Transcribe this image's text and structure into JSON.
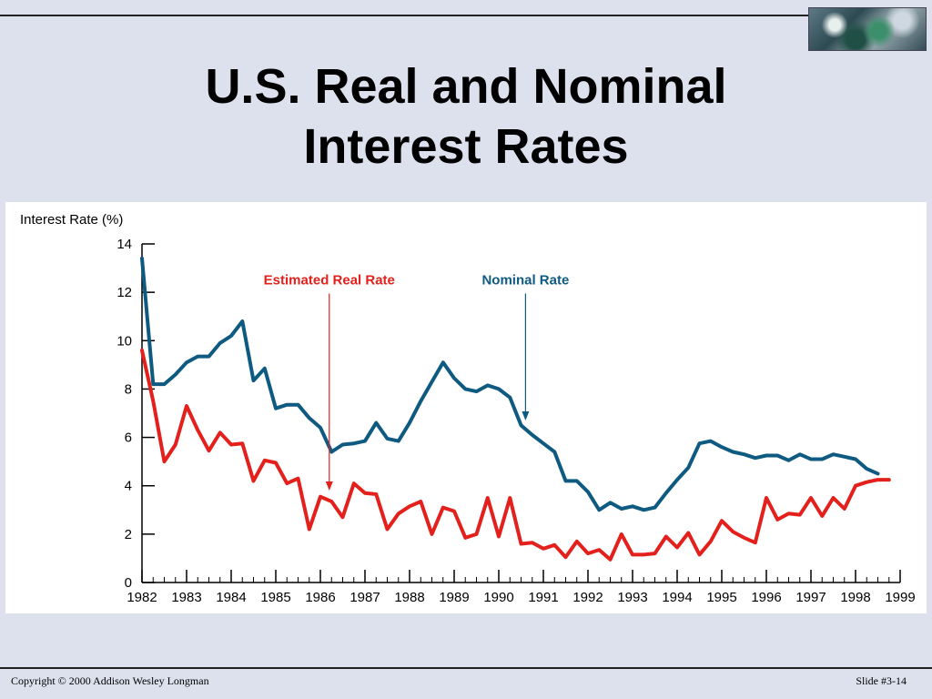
{
  "slide": {
    "title_line1": "U.S. Real and Nominal",
    "title_line2": "Interest Rates",
    "copyright": "Copyright © 2000 Addison Wesley Longman",
    "slide_number": "Slide #3-14"
  },
  "colors": {
    "nominal": "#0e5a80",
    "real": "#e3201b",
    "axis": "#000000"
  },
  "chart_data": {
    "type": "line",
    "title": "",
    "ylabel": "Interest Rate (%)",
    "xlabel": "",
    "xlim": [
      1982,
      1999
    ],
    "ylim": [
      0,
      14
    ],
    "yticks": [
      0,
      2,
      4,
      6,
      8,
      10,
      12,
      14
    ],
    "xticks": [
      1982,
      1983,
      1984,
      1985,
      1986,
      1987,
      1988,
      1989,
      1990,
      1991,
      1992,
      1993,
      1994,
      1995,
      1996,
      1997,
      1998,
      1999
    ],
    "grid": false,
    "legend": "inline annotations with arrows",
    "series": [
      {
        "name": "Nominal Rate",
        "color": "#0e5a80",
        "annotation": {
          "x": 1990.6,
          "y": 12.1,
          "arrow_to_y": 6.7
        },
        "points": [
          [
            1982.0,
            13.4
          ],
          [
            1982.25,
            8.2
          ],
          [
            1982.5,
            8.2
          ],
          [
            1982.75,
            8.6
          ],
          [
            1983.0,
            9.1
          ],
          [
            1983.25,
            9.35
          ],
          [
            1983.5,
            9.35
          ],
          [
            1983.75,
            9.9
          ],
          [
            1984.0,
            10.2
          ],
          [
            1984.25,
            10.8
          ],
          [
            1984.5,
            8.35
          ],
          [
            1984.75,
            8.85
          ],
          [
            1985.0,
            7.2
          ],
          [
            1985.25,
            7.35
          ],
          [
            1985.5,
            7.35
          ],
          [
            1985.75,
            6.8
          ],
          [
            1986.0,
            6.4
          ],
          [
            1986.25,
            5.4
          ],
          [
            1986.5,
            5.7
          ],
          [
            1986.75,
            5.75
          ],
          [
            1987.0,
            5.85
          ],
          [
            1987.25,
            6.6
          ],
          [
            1987.5,
            5.95
          ],
          [
            1987.75,
            5.85
          ],
          [
            1988.0,
            6.6
          ],
          [
            1988.25,
            7.5
          ],
          [
            1988.5,
            8.3
          ],
          [
            1988.75,
            9.1
          ],
          [
            1989.0,
            8.45
          ],
          [
            1989.25,
            8.0
          ],
          [
            1989.5,
            7.9
          ],
          [
            1989.75,
            8.15
          ],
          [
            1990.0,
            8.0
          ],
          [
            1990.25,
            7.65
          ],
          [
            1990.5,
            6.5
          ],
          [
            1990.75,
            6.1
          ],
          [
            1991.0,
            5.75
          ],
          [
            1991.25,
            5.4
          ],
          [
            1991.5,
            4.2
          ],
          [
            1991.75,
            4.2
          ],
          [
            1992.0,
            3.75
          ],
          [
            1992.25,
            3.0
          ],
          [
            1992.5,
            3.3
          ],
          [
            1992.75,
            3.05
          ],
          [
            1993.0,
            3.15
          ],
          [
            1993.25,
            3.0
          ],
          [
            1993.5,
            3.1
          ],
          [
            1993.75,
            3.7
          ],
          [
            1994.0,
            4.25
          ],
          [
            1994.25,
            4.75
          ],
          [
            1994.5,
            5.75
          ],
          [
            1994.75,
            5.85
          ],
          [
            1995.0,
            5.6
          ],
          [
            1995.25,
            5.4
          ],
          [
            1995.5,
            5.3
          ],
          [
            1995.75,
            5.15
          ],
          [
            1996.0,
            5.25
          ],
          [
            1996.25,
            5.25
          ],
          [
            1996.5,
            5.05
          ],
          [
            1996.75,
            5.3
          ],
          [
            1997.0,
            5.1
          ],
          [
            1997.25,
            5.1
          ],
          [
            1997.5,
            5.3
          ],
          [
            1997.75,
            5.2
          ],
          [
            1998.0,
            5.1
          ],
          [
            1998.25,
            4.7
          ],
          [
            1998.5,
            4.5
          ]
        ]
      },
      {
        "name": "Estimated Real Rate",
        "color": "#e3201b",
        "annotation": {
          "x": 1986.2,
          "y": 12.1,
          "arrow_to_y": 3.8
        },
        "points": [
          [
            1982.0,
            9.6
          ],
          [
            1982.25,
            7.5
          ],
          [
            1982.5,
            5.0
          ],
          [
            1982.75,
            5.7
          ],
          [
            1983.0,
            7.3
          ],
          [
            1983.25,
            6.3
          ],
          [
            1983.5,
            5.45
          ],
          [
            1983.75,
            6.2
          ],
          [
            1984.0,
            5.7
          ],
          [
            1984.25,
            5.75
          ],
          [
            1984.5,
            4.2
          ],
          [
            1984.75,
            5.05
          ],
          [
            1985.0,
            4.95
          ],
          [
            1985.25,
            4.1
          ],
          [
            1985.5,
            4.3
          ],
          [
            1985.75,
            2.2
          ],
          [
            1986.0,
            3.55
          ],
          [
            1986.25,
            3.35
          ],
          [
            1986.5,
            2.7
          ],
          [
            1986.75,
            4.1
          ],
          [
            1987.0,
            3.7
          ],
          [
            1987.25,
            3.65
          ],
          [
            1987.5,
            2.2
          ],
          [
            1987.75,
            2.85
          ],
          [
            1988.0,
            3.15
          ],
          [
            1988.25,
            3.35
          ],
          [
            1988.5,
            2.0
          ],
          [
            1988.75,
            3.1
          ],
          [
            1989.0,
            2.95
          ],
          [
            1989.25,
            1.85
          ],
          [
            1989.5,
            2.0
          ],
          [
            1989.75,
            3.5
          ],
          [
            1990.0,
            1.9
          ],
          [
            1990.25,
            3.5
          ],
          [
            1990.5,
            1.6
          ],
          [
            1990.75,
            1.65
          ],
          [
            1991.0,
            1.4
          ],
          [
            1991.25,
            1.55
          ],
          [
            1991.5,
            1.05
          ],
          [
            1991.75,
            1.7
          ],
          [
            1992.0,
            1.2
          ],
          [
            1992.25,
            1.35
          ],
          [
            1992.5,
            0.95
          ],
          [
            1992.75,
            2.0
          ],
          [
            1993.0,
            1.15
          ],
          [
            1993.25,
            1.15
          ],
          [
            1993.5,
            1.2
          ],
          [
            1993.75,
            1.9
          ],
          [
            1994.0,
            1.45
          ],
          [
            1994.25,
            2.05
          ],
          [
            1994.5,
            1.15
          ],
          [
            1994.75,
            1.7
          ],
          [
            1995.0,
            2.55
          ],
          [
            1995.25,
            2.1
          ],
          [
            1995.5,
            1.85
          ],
          [
            1995.75,
            1.65
          ],
          [
            1996.0,
            3.5
          ],
          [
            1996.25,
            2.6
          ],
          [
            1996.5,
            2.85
          ],
          [
            1996.75,
            2.8
          ],
          [
            1997.0,
            3.5
          ],
          [
            1997.25,
            2.75
          ],
          [
            1997.5,
            3.5
          ],
          [
            1997.75,
            3.05
          ],
          [
            1998.0,
            4.0
          ],
          [
            1998.25,
            4.15
          ],
          [
            1998.5,
            4.25
          ],
          [
            1998.75,
            4.25
          ]
        ]
      }
    ]
  }
}
